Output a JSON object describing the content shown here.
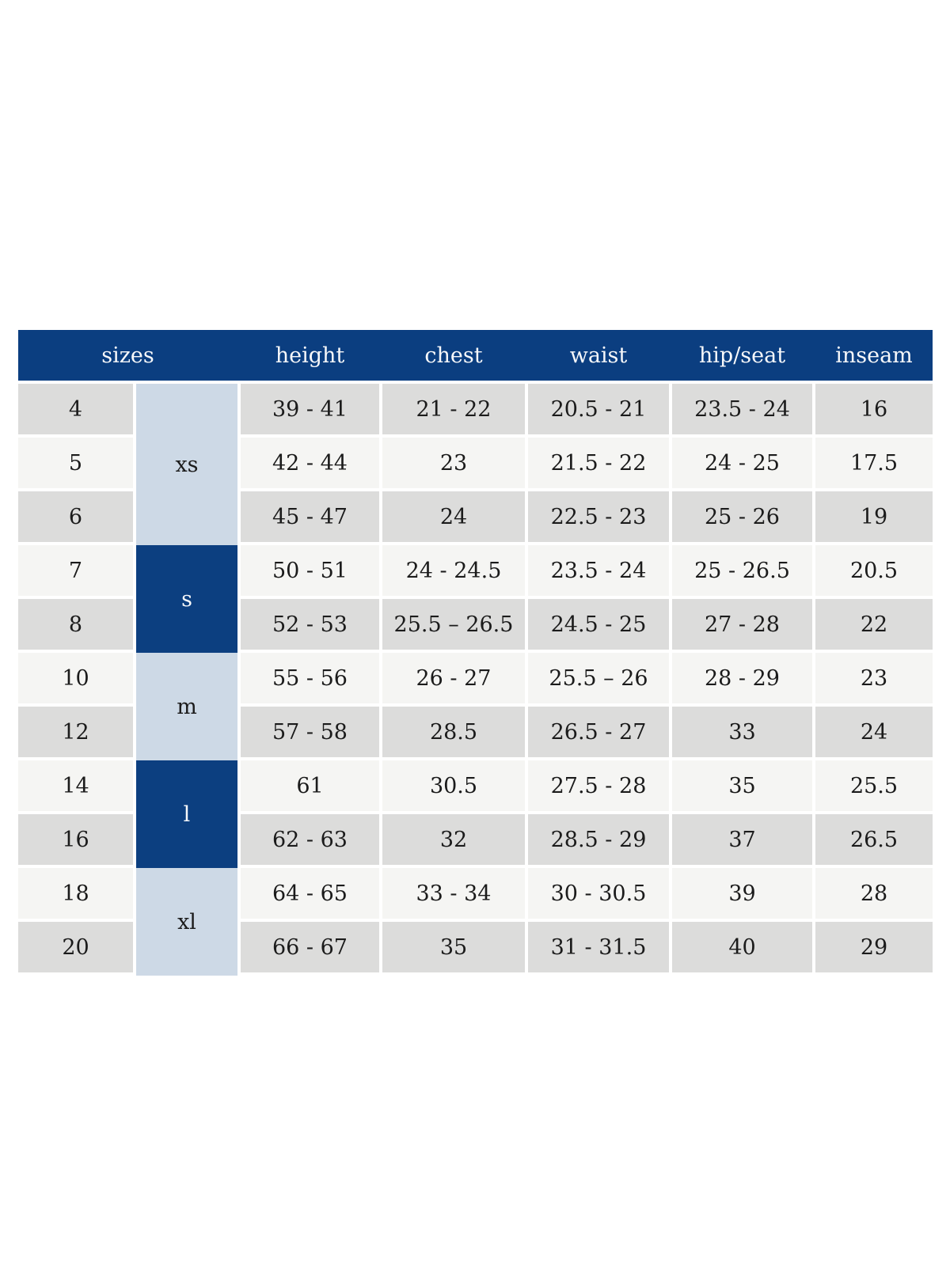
{
  "table": {
    "header": {
      "sizes_label": "sizes",
      "height_label": "height",
      "chest_label": "chest",
      "waist_label": "waist",
      "hip_seat_label": "hip/seat",
      "inseam_label": "inseam"
    },
    "size_groups": [
      {
        "label": "xs",
        "tone": "light",
        "row_span": 3
      },
      {
        "label": "s",
        "tone": "dark",
        "row_span": 2
      },
      {
        "label": "m",
        "tone": "light",
        "row_span": 2
      },
      {
        "label": "l",
        "tone": "dark",
        "row_span": 2
      },
      {
        "label": "xl",
        "tone": "light",
        "row_span": 2
      }
    ],
    "rows": [
      {
        "size": "4",
        "height": "39 - 41",
        "chest": "21 - 22",
        "waist": "20.5 - 21",
        "hip_seat": "23.5 - 24",
        "inseam": "16"
      },
      {
        "size": "5",
        "height": "42 - 44",
        "chest": "23",
        "waist": "21.5 - 22",
        "hip_seat": "24 - 25",
        "inseam": "17.5"
      },
      {
        "size": "6",
        "height": "45 - 47",
        "chest": "24",
        "waist": "22.5 - 23",
        "hip_seat": "25 - 26",
        "inseam": "19"
      },
      {
        "size": "7",
        "height": "50 - 51",
        "chest": "24 - 24.5",
        "waist": "23.5 - 24",
        "hip_seat": "25 - 26.5",
        "inseam": "20.5"
      },
      {
        "size": "8",
        "height": "52 - 53",
        "chest": "25.5 – 26.5",
        "waist": "24.5 - 25",
        "hip_seat": "27 - 28",
        "inseam": "22"
      },
      {
        "size": "10",
        "height": "55 - 56",
        "chest": "26 - 27",
        "waist": "25.5 – 26",
        "hip_seat": "28 - 29",
        "inseam": "23"
      },
      {
        "size": "12",
        "height": "57 - 58",
        "chest": "28.5",
        "waist": "26.5 - 27",
        "hip_seat": "33",
        "inseam": "24"
      },
      {
        "size": "14",
        "height": "61",
        "chest": "30.5",
        "waist": "27.5 - 28",
        "hip_seat": "35",
        "inseam": "25.5"
      },
      {
        "size": "16",
        "height": "62 - 63",
        "chest": "32",
        "waist": "28.5 - 29",
        "hip_seat": "37",
        "inseam": "26.5"
      },
      {
        "size": "18",
        "height": "64 - 65",
        "chest": "33 - 34",
        "waist": "30 - 30.5",
        "hip_seat": "39",
        "inseam": "28"
      },
      {
        "size": "20",
        "height": "66 - 67",
        "chest": "35",
        "waist": "31 - 31.5",
        "hip_seat": "40",
        "inseam": "29"
      }
    ],
    "colors": {
      "header_bg": "#0b3e80",
      "header_text": "#f7f8fa",
      "group_dark_bg": "#0c3f80",
      "group_dark_text": "#f7f8fa",
      "group_light_bg": "#cdd9e6",
      "row_gray_bg": "#dcdcdb",
      "row_light_bg": "#f5f5f3",
      "cell_text": "#1b1b1b"
    }
  }
}
